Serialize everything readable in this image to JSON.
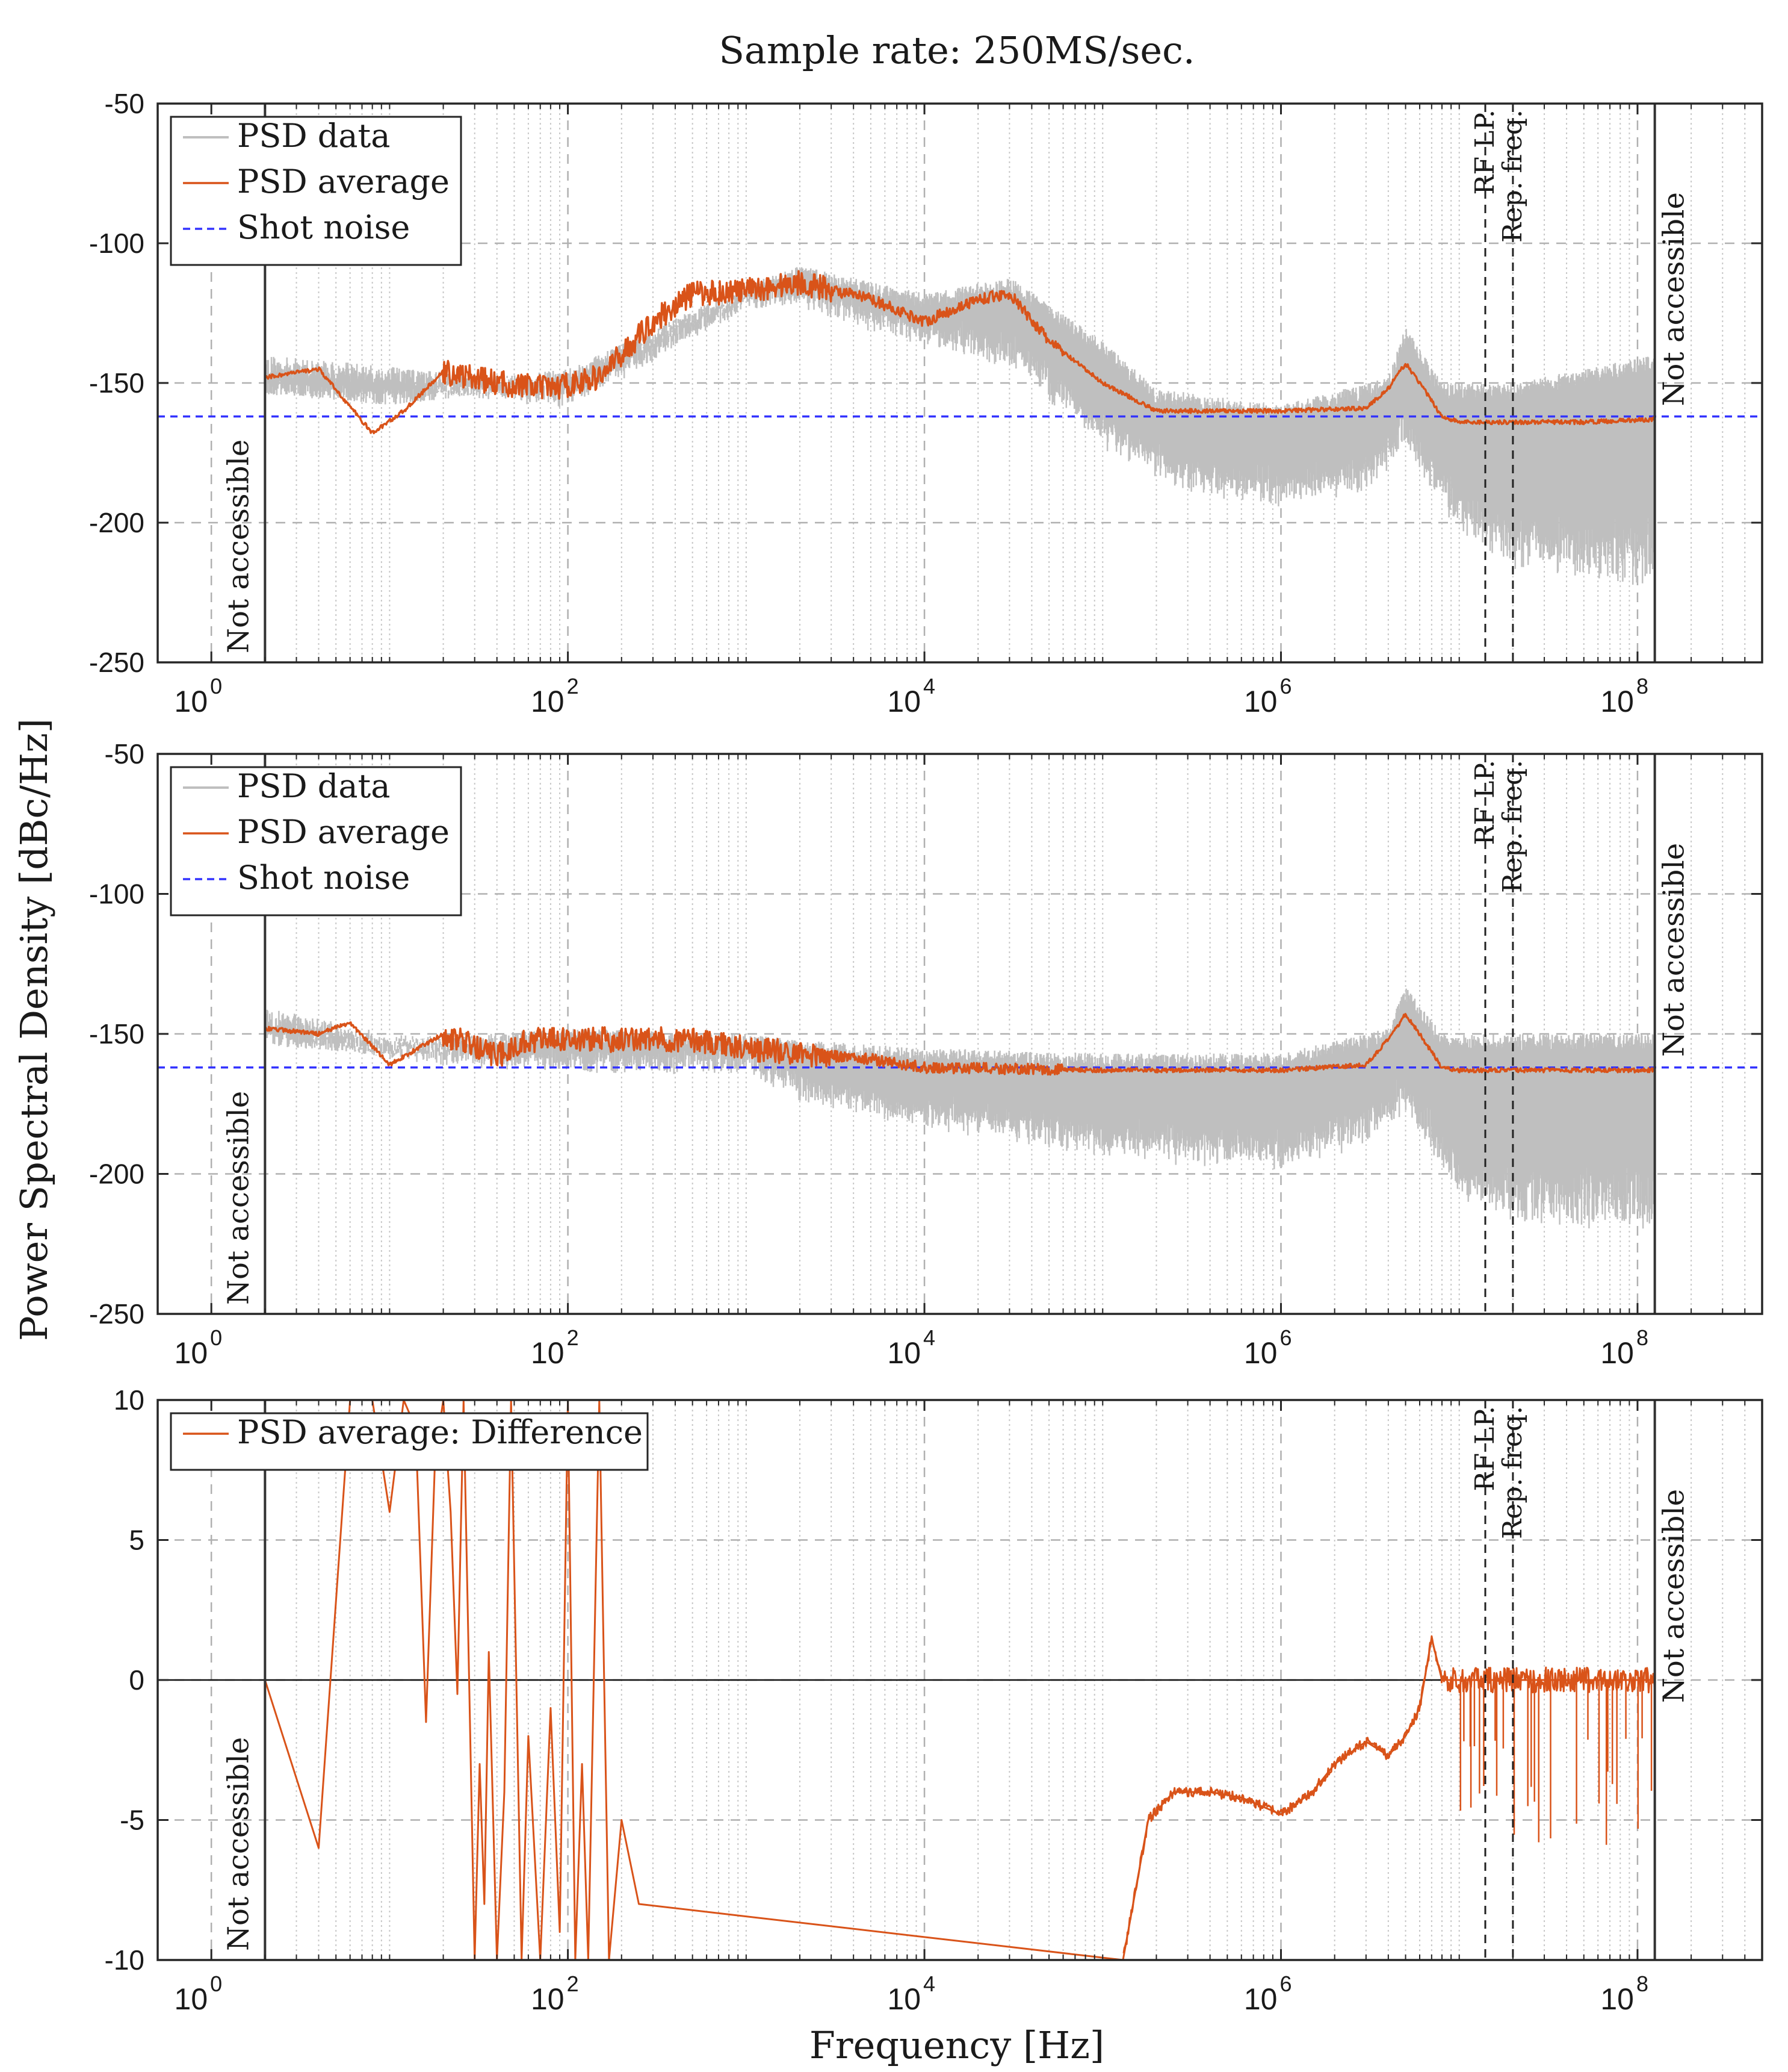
{
  "figure": {
    "title": "Sample rate: 250MS/sec.",
    "ylabel": "Power Spectral Density [dBc/Hz]",
    "xlabel": "Frequency [Hz]"
  },
  "colors": {
    "data": "#bfbfbf",
    "average": "#d95319",
    "shot_noise": "#3333ff",
    "axes": "#262626",
    "grid": "#b0b0b0"
  },
  "chart_data": [
    {
      "type": "line",
      "xscale": "log",
      "xlim": [
        0.5,
        500000000
      ],
      "ylim": [
        -250,
        -50
      ],
      "xticks": [
        1,
        100,
        10000,
        1000000,
        100000000
      ],
      "xtick_labels": [
        {
          "base": "10",
          "exp": "0"
        },
        {
          "base": "10",
          "exp": "2"
        },
        {
          "base": "10",
          "exp": "4"
        },
        {
          "base": "10",
          "exp": "6"
        },
        {
          "base": "10",
          "exp": "8"
        }
      ],
      "yticks": [
        -50,
        -100,
        -150,
        -200,
        -250
      ],
      "ytick_labels": [
        "-50",
        "-100",
        "-150",
        "-200",
        "-250"
      ],
      "legend": {
        "placement": "top-left",
        "entries": [
          {
            "label": "PSD data",
            "style": "data"
          },
          {
            "label": "PSD average",
            "style": "average"
          },
          {
            "label": "Shot noise",
            "style": "shot"
          }
        ]
      },
      "shot_noise_level": -162,
      "annotations": {
        "not_accessible_left": "Not accessible",
        "not_accessible_right": "Not accessible",
        "rf_lp": "RF LP.",
        "rep_freq": "Rep. freq."
      },
      "boundaries": {
        "low_limit_hz": 2,
        "high_limit_hz": 125000000,
        "rf_lp_hz": 14000000,
        "rep_freq_hz": 20000000
      },
      "series": [
        {
          "name": "PSD average",
          "points": [
            [
              2,
              -148
            ],
            [
              4,
              -145
            ],
            [
              8,
              -168
            ],
            [
              12,
              -160
            ],
            [
              20,
              -146
            ],
            [
              40,
              -150
            ],
            [
              80,
              -152
            ],
            [
              150,
              -148
            ],
            [
              300,
              -128
            ],
            [
              500,
              -118
            ],
            [
              1000,
              -117
            ],
            [
              2000,
              -114
            ],
            [
              5000,
              -120
            ],
            [
              10000,
              -128
            ],
            [
              20000,
              -120
            ],
            [
              30000,
              -118
            ],
            [
              50000,
              -135
            ],
            [
              100000,
              -150
            ],
            [
              200000,
              -160
            ],
            [
              1000000,
              -160
            ],
            [
              3000000,
              -159
            ],
            [
              4000000,
              -152
            ],
            [
              5000000,
              -143
            ],
            [
              6000000,
              -150
            ],
            [
              8000000,
              -162
            ],
            [
              10000000,
              -164
            ],
            [
              50000000,
              -164
            ],
            [
              125000000,
              -163
            ]
          ]
        },
        {
          "name": "PSD data upper",
          "points": [
            [
              2,
              -148
            ],
            [
              10,
              -152
            ],
            [
              100,
              -145
            ],
            [
              1000,
              -115
            ],
            [
              2000,
              -108
            ],
            [
              10000,
              -118
            ],
            [
              30000,
              -112
            ],
            [
              100000,
              -135
            ],
            [
              200000,
              -152
            ],
            [
              1000000,
              -158
            ],
            [
              4000000,
              -148
            ],
            [
              5000000,
              -130
            ],
            [
              8000000,
              -150
            ],
            [
              20000000,
              -150
            ],
            [
              125000000,
              -140
            ]
          ]
        },
        {
          "name": "PSD data lower",
          "points": [
            [
              2,
              -148
            ],
            [
              10,
              -152
            ],
            [
              100,
              -160
            ],
            [
              1000,
              -125
            ],
            [
              2000,
              -124
            ],
            [
              10000,
              -138
            ],
            [
              30000,
              -145
            ],
            [
              100000,
              -175
            ],
            [
              300000,
              -190
            ],
            [
              1000000,
              -195
            ],
            [
              3000000,
              -190
            ],
            [
              5000000,
              -175
            ],
            [
              10000000,
              -205
            ],
            [
              20000000,
              -218
            ],
            [
              125000000,
              -225
            ]
          ]
        }
      ]
    },
    {
      "type": "line",
      "xscale": "log",
      "xlim": [
        0.5,
        500000000
      ],
      "ylim": [
        -250,
        -50
      ],
      "xticks": [
        1,
        100,
        10000,
        1000000,
        100000000
      ],
      "xtick_labels": [
        {
          "base": "10",
          "exp": "0"
        },
        {
          "base": "10",
          "exp": "2"
        },
        {
          "base": "10",
          "exp": "4"
        },
        {
          "base": "10",
          "exp": "6"
        },
        {
          "base": "10",
          "exp": "8"
        }
      ],
      "yticks": [
        -50,
        -100,
        -150,
        -200,
        -250
      ],
      "ytick_labels": [
        "-50",
        "-100",
        "-150",
        "-200",
        "-250"
      ],
      "legend": {
        "placement": "top-left",
        "entries": [
          {
            "label": "PSD data",
            "style": "data"
          },
          {
            "label": "PSD average",
            "style": "average"
          },
          {
            "label": "Shot noise",
            "style": "shot"
          }
        ]
      },
      "shot_noise_level": -162,
      "annotations": {
        "not_accessible_left": "Not accessible",
        "not_accessible_right": "Not accessible",
        "rf_lp": "RF LP.",
        "rep_freq": "Rep. freq."
      },
      "boundaries": {
        "low_limit_hz": 2,
        "high_limit_hz": 125000000,
        "rf_lp_hz": 14000000,
        "rep_freq_hz": 20000000
      },
      "series": [
        {
          "name": "PSD average",
          "points": [
            [
              2,
              -148
            ],
            [
              4,
              -150
            ],
            [
              6,
              -146
            ],
            [
              10,
              -161
            ],
            [
              20,
              -150
            ],
            [
              40,
              -158
            ],
            [
              60,
              -152
            ],
            [
              100,
              -152
            ],
            [
              300,
              -152
            ],
            [
              500,
              -152
            ],
            [
              1000,
              -155
            ],
            [
              2000,
              -157
            ],
            [
              5000,
              -159
            ],
            [
              10000,
              -162
            ],
            [
              100000,
              -163
            ],
            [
              1000000,
              -163
            ],
            [
              3000000,
              -161
            ],
            [
              4000000,
              -152
            ],
            [
              5000000,
              -143
            ],
            [
              6000000,
              -150
            ],
            [
              8000000,
              -162
            ],
            [
              10000000,
              -163
            ],
            [
              50000000,
              -163
            ],
            [
              125000000,
              -163
            ]
          ]
        },
        {
          "name": "PSD data upper",
          "points": [
            [
              2,
              -148
            ],
            [
              10,
              -152
            ],
            [
              100,
              -148
            ],
            [
              1000,
              -150
            ],
            [
              2000,
              -152
            ],
            [
              10000,
              -155
            ],
            [
              100000,
              -157
            ],
            [
              1000000,
              -157
            ],
            [
              4000000,
              -148
            ],
            [
              5000000,
              -133
            ],
            [
              8000000,
              -150
            ],
            [
              20000000,
              -150
            ],
            [
              125000000,
              -150
            ]
          ]
        },
        {
          "name": "PSD data lower",
          "points": [
            [
              2,
              -148
            ],
            [
              10,
              -160
            ],
            [
              100,
              -165
            ],
            [
              1000,
              -165
            ],
            [
              2000,
              -175
            ],
            [
              10000,
              -185
            ],
            [
              100000,
              -195
            ],
            [
              1000000,
              -200
            ],
            [
              3000000,
              -190
            ],
            [
              5000000,
              -180
            ],
            [
              10000000,
              -210
            ],
            [
              20000000,
              -218
            ],
            [
              125000000,
              -222
            ]
          ]
        }
      ]
    },
    {
      "type": "line",
      "xscale": "log",
      "xlim": [
        0.5,
        500000000
      ],
      "ylim": [
        -10,
        10
      ],
      "xticks": [
        1,
        100,
        10000,
        1000000,
        100000000
      ],
      "xtick_labels": [
        {
          "base": "10",
          "exp": "0"
        },
        {
          "base": "10",
          "exp": "2"
        },
        {
          "base": "10",
          "exp": "4"
        },
        {
          "base": "10",
          "exp": "6"
        },
        {
          "base": "10",
          "exp": "8"
        }
      ],
      "yticks": [
        10,
        5,
        0,
        -5,
        -10
      ],
      "ytick_labels": [
        "10",
        "5",
        "0",
        "-5",
        "-10"
      ],
      "legend": {
        "placement": "top-left",
        "entries": [
          {
            "label": "PSD average: Difference",
            "style": "average"
          }
        ]
      },
      "zero_line": 0,
      "annotations": {
        "not_accessible_left": "Not accessible",
        "not_accessible_right": "Not accessible",
        "rf_lp": "RF LP.",
        "rep_freq": "Rep. freq."
      },
      "boundaries": {
        "low_limit_hz": 2,
        "high_limit_hz": 125000000,
        "rf_lp_hz": 14000000,
        "rep_freq_hz": 20000000
      },
      "series": [
        {
          "name": "PSD average: Difference",
          "points": [
            [
              2,
              0
            ],
            [
              4,
              -6
            ],
            [
              6,
              10
            ],
            [
              8,
              10
            ],
            [
              10,
              6
            ],
            [
              12,
              10
            ],
            [
              14,
              9
            ],
            [
              16,
              -1.5
            ],
            [
              18,
              8
            ],
            [
              20,
              10
            ],
            [
              22,
              6
            ],
            [
              24,
              -0.5
            ],
            [
              26,
              10
            ],
            [
              30,
              -10
            ],
            [
              32,
              -3
            ],
            [
              34,
              -8
            ],
            [
              36,
              1
            ],
            [
              40,
              -10
            ],
            [
              44,
              -4
            ],
            [
              48,
              10
            ],
            [
              55,
              -10
            ],
            [
              60,
              -2
            ],
            [
              70,
              -10
            ],
            [
              80,
              -1
            ],
            [
              90,
              -9
            ],
            [
              100,
              10
            ],
            [
              110,
              -10
            ],
            [
              120,
              -3
            ],
            [
              130,
              -10
            ],
            [
              150,
              10
            ],
            [
              170,
              -10
            ],
            [
              200,
              -5
            ],
            [
              250,
              -8
            ],
            [
              130000,
              -10
            ],
            [
              180000,
              -5
            ],
            [
              250000,
              -4
            ],
            [
              400000,
              -4
            ],
            [
              600000,
              -4.2
            ],
            [
              1000000,
              -4.8
            ],
            [
              1500000,
              -4
            ],
            [
              2000000,
              -3
            ],
            [
              3000000,
              -2.2
            ],
            [
              4000000,
              -2.7
            ],
            [
              5000000,
              -2
            ],
            [
              6000000,
              -1
            ],
            [
              7000000,
              1.5
            ],
            [
              8000000,
              0
            ],
            [
              20000000,
              0
            ],
            [
              125000000,
              0
            ]
          ]
        }
      ]
    }
  ]
}
